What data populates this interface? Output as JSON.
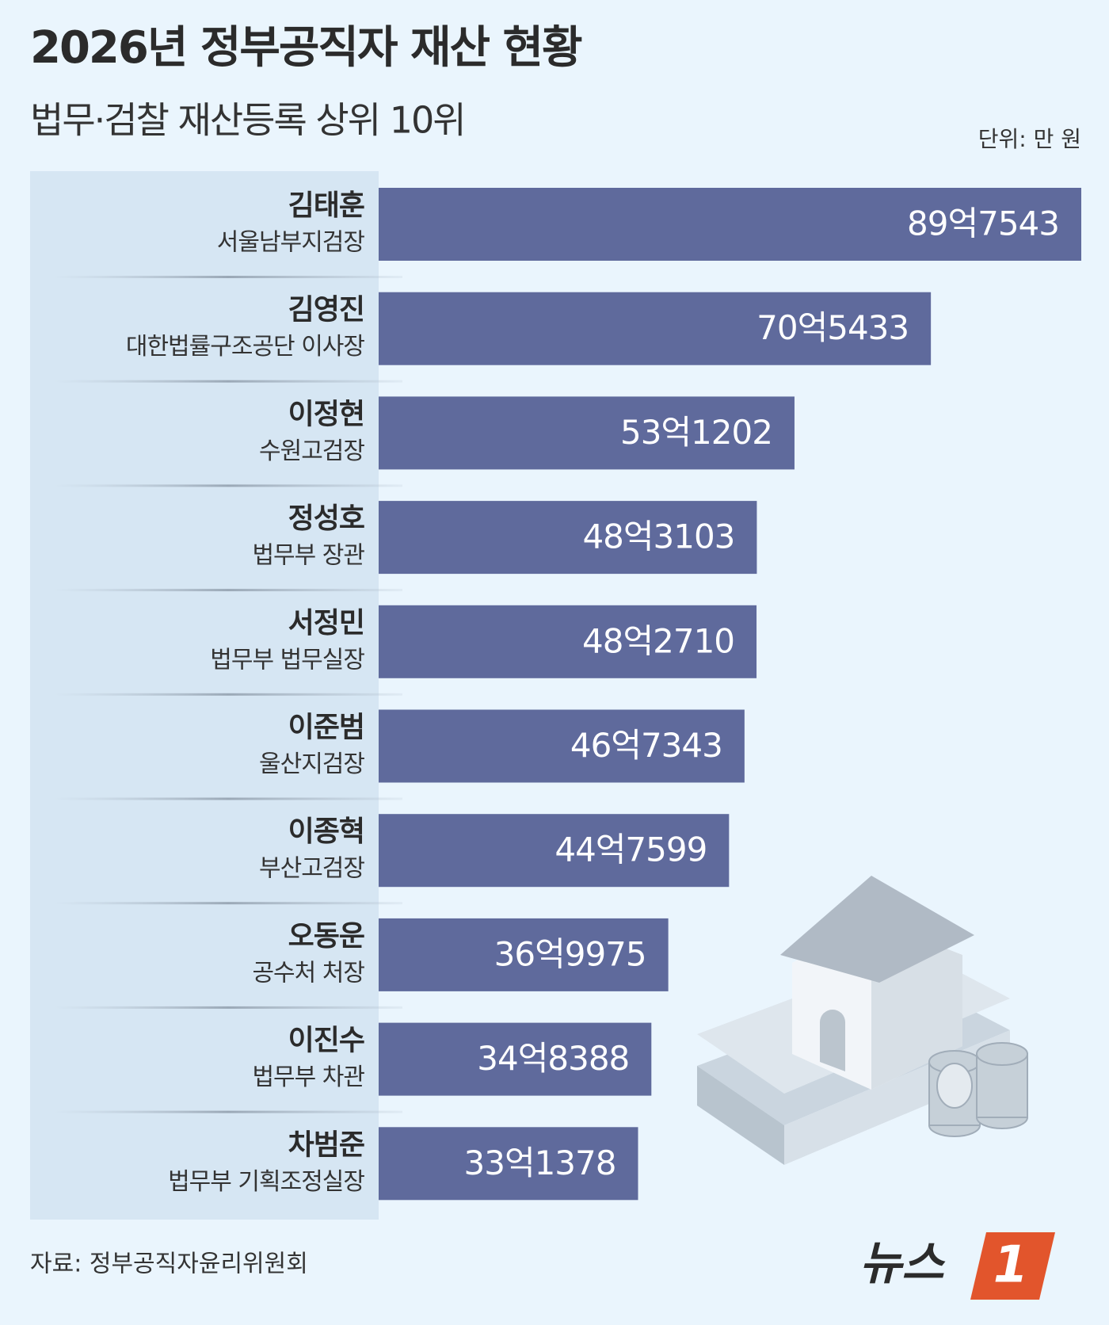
{
  "chart_data": {
    "type": "bar",
    "orientation": "horizontal",
    "title": "2026년 정부공직자 재산 현황",
    "subtitle": "법무·검찰 재산등록 상위 10위",
    "unit": "단위: 만 원",
    "categories": [
      "김태훈",
      "김영진",
      "이정현",
      "정성호",
      "서정민",
      "이준범",
      "이종혁",
      "오동운",
      "이진수",
      "차범준"
    ],
    "category_roles": [
      "서울남부지검장",
      "대한법률구조공단 이사장",
      "수원고검장",
      "법무부 장관",
      "법무부 법무실장",
      "울산지검장",
      "부산고검장",
      "공수처 처장",
      "법무부 차관",
      "법무부 기획조정실장"
    ],
    "values": [
      897543,
      705433,
      531202,
      483103,
      482710,
      467343,
      447599,
      369975,
      348388,
      331378
    ],
    "value_labels": [
      "89억7543",
      "70억5433",
      "53억1202",
      "48억3103",
      "48억2710",
      "46억7343",
      "44억7599",
      "36억9975",
      "34억8388",
      "33억1378"
    ],
    "color": "#5f6a9c",
    "source": "자료: 정부공직자윤리위원회",
    "logo": {
      "text": "뉴스",
      "mark": "1"
    }
  }
}
